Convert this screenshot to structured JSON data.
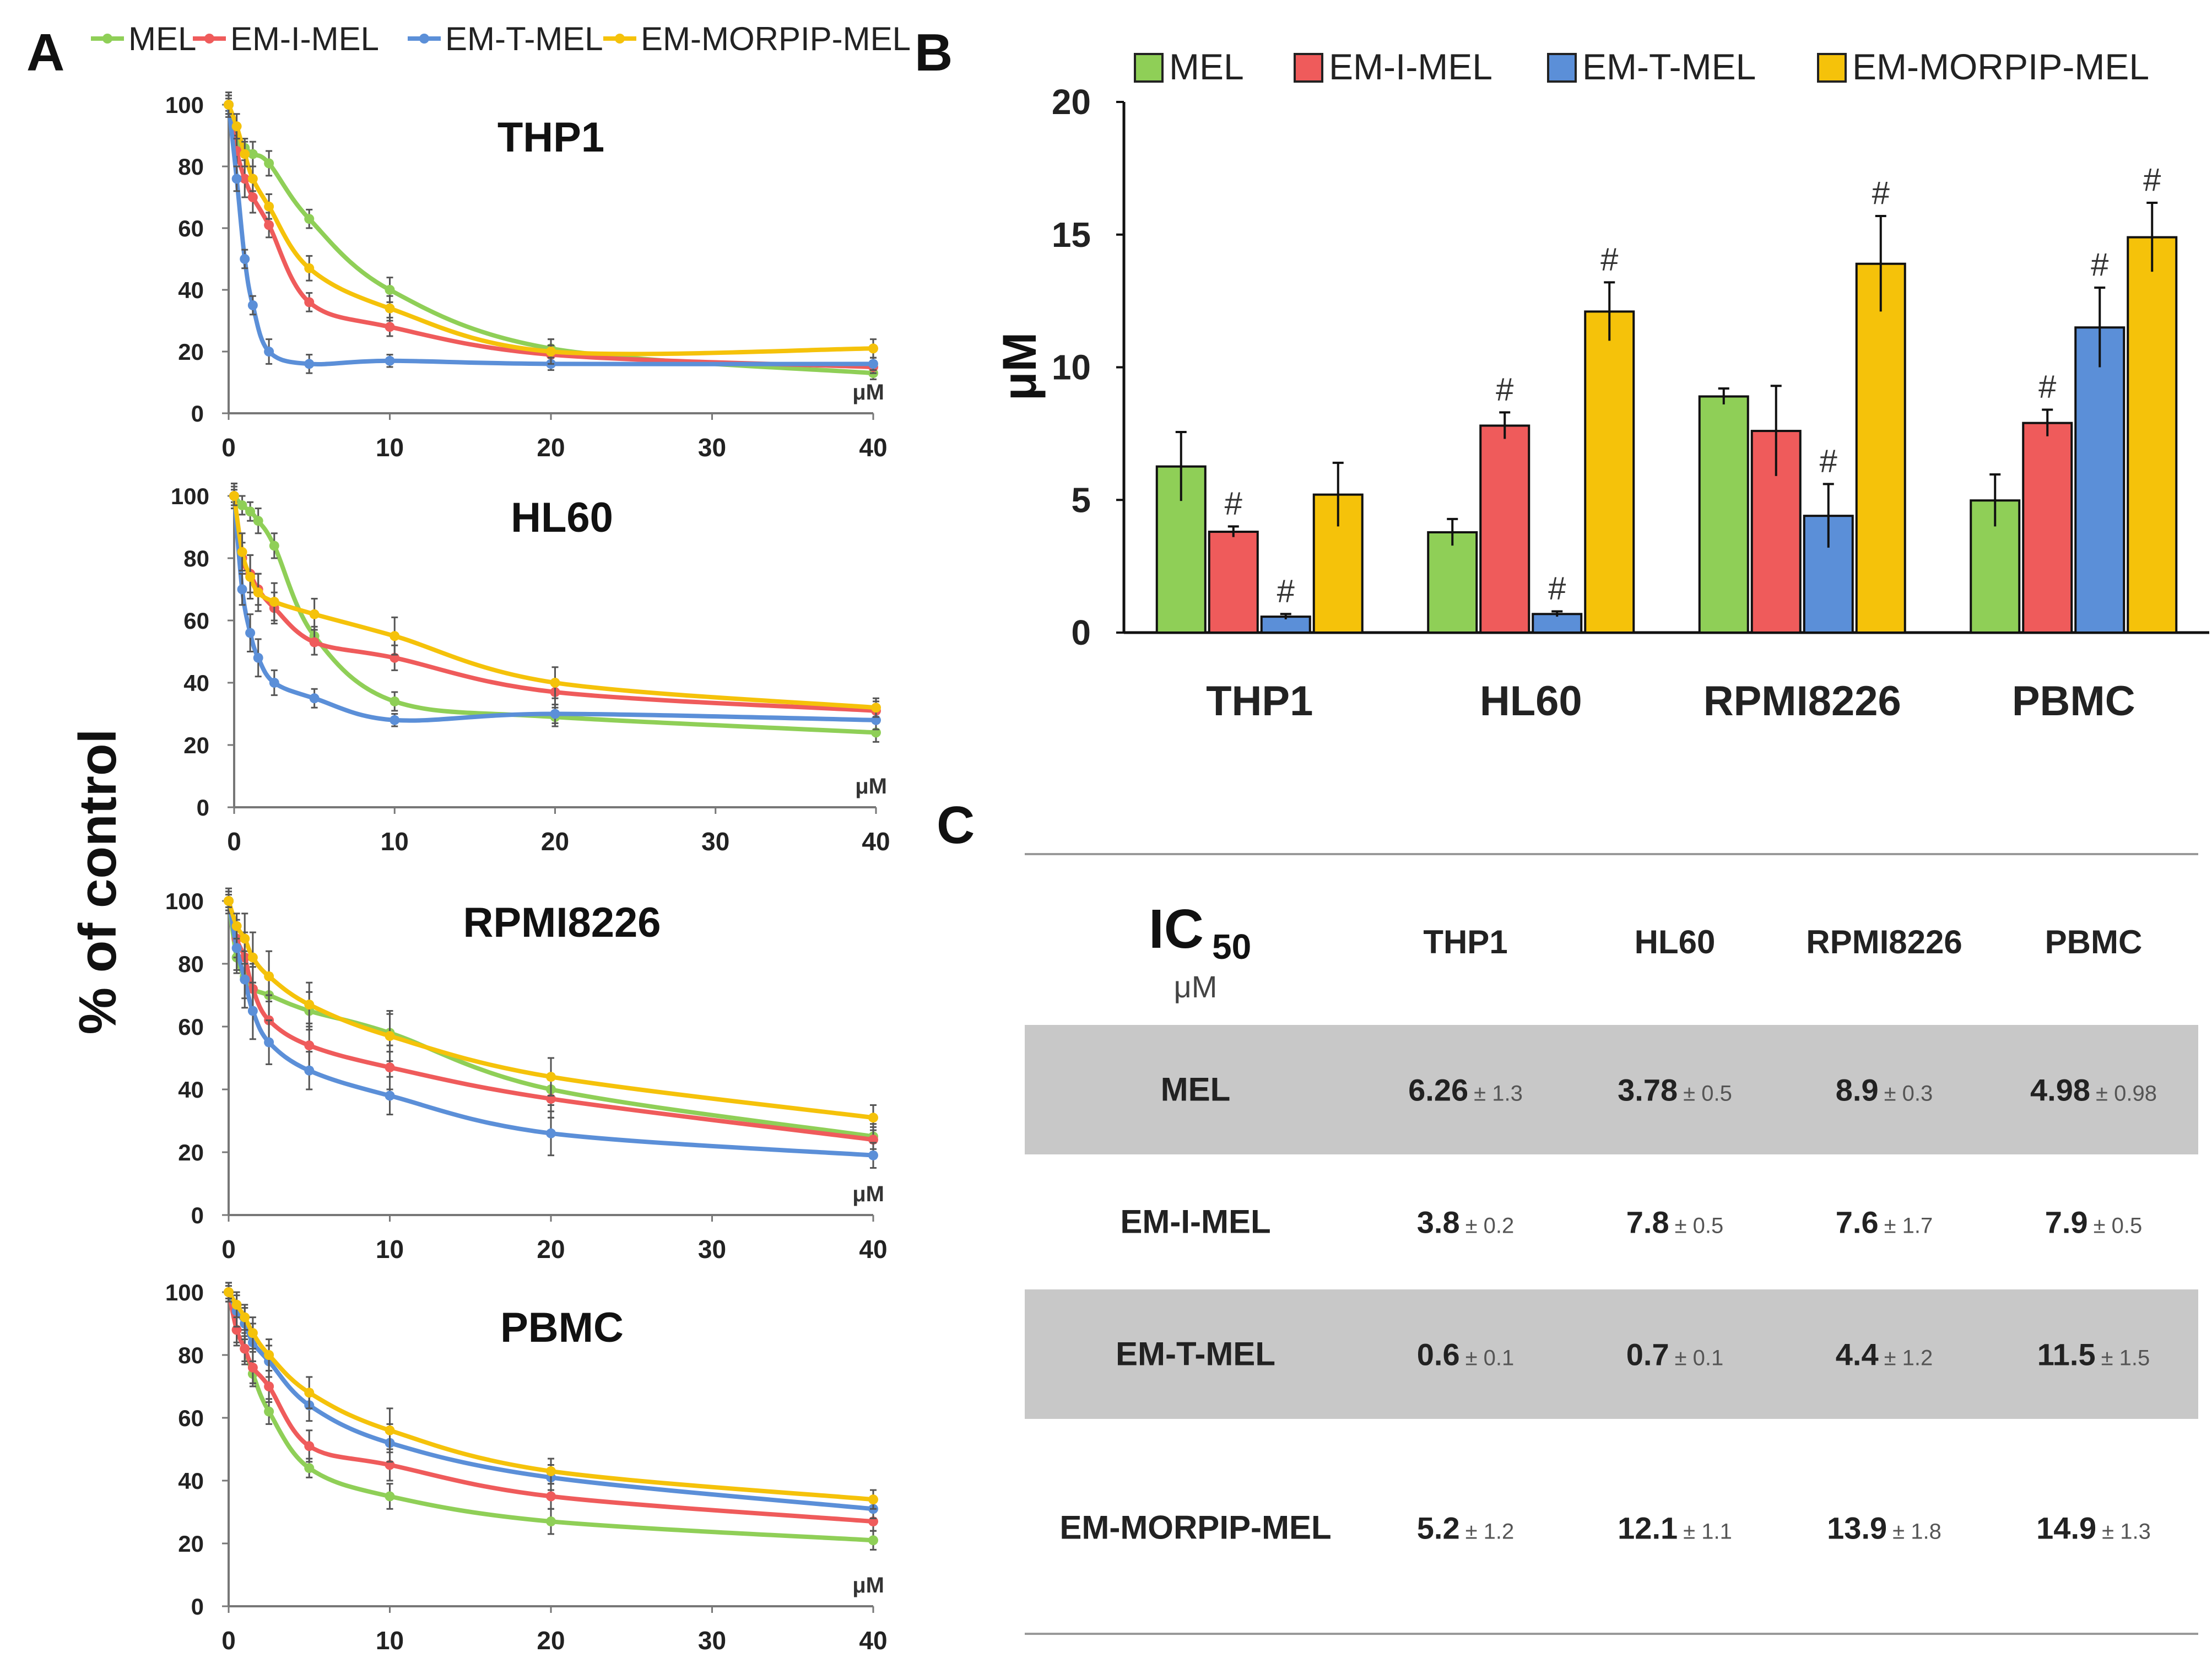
{
  "colors": {
    "MEL": "#8fcf57",
    "EM-I-MEL": "#ef5b5b",
    "EM-T-MEL": "#5b8fd8",
    "EM-MORPIP-MEL": "#f5c20a"
  },
  "panel_labels": {
    "a": "A",
    "b": "B",
    "c": "C"
  },
  "legend": {
    "items": [
      "MEL",
      "EM-I-MEL",
      "EM-T-MEL",
      "EM-MORPIP-MEL"
    ]
  },
  "panelA": {
    "ylabel": "% of control",
    "unit": "μM"
  },
  "panelB": {
    "ylabel": "μM",
    "marker": "#"
  },
  "table": {
    "title_main": "IC",
    "title_sub": "50",
    "title_unit": "μM",
    "columns": [
      "THP1",
      "HL60",
      "RPMI8226",
      "PBMC"
    ],
    "rows": [
      {
        "label": "MEL",
        "values": [
          "6.26",
          "3.78",
          "8.9",
          "4.98"
        ],
        "errors": [
          "± 1.3",
          "± 0.5",
          "± 0.3",
          "± 0.98"
        ]
      },
      {
        "label": "EM-I-MEL",
        "values": [
          "3.8",
          "7.8",
          "7.6",
          "7.9"
        ],
        "errors": [
          "± 0.2",
          "± 0.5",
          "± 1.7",
          "± 0.5"
        ]
      },
      {
        "label": "EM-T-MEL",
        "values": [
          "0.6",
          "0.7",
          "4.4",
          "11.5"
        ],
        "errors": [
          "± 0.1",
          "± 0.1",
          "± 1.2",
          "± 1.5"
        ]
      },
      {
        "label": "EM-MORPIP-MEL",
        "values": [
          "5.2",
          "12.1",
          "13.9",
          "14.9"
        ],
        "errors": [
          "± 1.2",
          "± 1.1",
          "± 1.8",
          "± 1.3"
        ]
      }
    ]
  },
  "chart_data": [
    {
      "type": "line",
      "title": "THP1",
      "xlabel": "μM",
      "ylabel": "% of control",
      "x": [
        0,
        0.5,
        1,
        1.5,
        2.5,
        5,
        10,
        20,
        40
      ],
      "xlim": [
        0,
        40
      ],
      "ylim": [
        0,
        100
      ],
      "xticks": [
        0,
        10,
        20,
        30,
        40
      ],
      "yticks": [
        0,
        20,
        40,
        60,
        80,
        100
      ],
      "series": [
        {
          "name": "MEL",
          "values": [
            100,
            88,
            86,
            84,
            81,
            63,
            40,
            21,
            13
          ],
          "errors": [
            2,
            3,
            3,
            4,
            4,
            3,
            4,
            3,
            2
          ]
        },
        {
          "name": "EM-I-MEL",
          "values": [
            100,
            85,
            76,
            70,
            61,
            36,
            28,
            19,
            15
          ],
          "errors": [
            3,
            5,
            6,
            5,
            4,
            3,
            3,
            3,
            2
          ]
        },
        {
          "name": "EM-T-MEL",
          "values": [
            100,
            76,
            50,
            35,
            20,
            16,
            17,
            16,
            16
          ],
          "errors": [
            4,
            4,
            3,
            3,
            4,
            3,
            2,
            2,
            2
          ]
        },
        {
          "name": "EM-MORPIP-MEL",
          "values": [
            100,
            93,
            84,
            76,
            67,
            47,
            34,
            20,
            21
          ],
          "errors": [
            3,
            4,
            4,
            4,
            4,
            4,
            4,
            4,
            3
          ]
        }
      ]
    },
    {
      "type": "line",
      "title": "HL60",
      "xlabel": "μM",
      "ylabel": "% of control",
      "x": [
        0,
        0.5,
        1,
        1.5,
        2.5,
        5,
        10,
        20,
        40
      ],
      "xlim": [
        0,
        40
      ],
      "ylim": [
        0,
        100
      ],
      "xticks": [
        0,
        10,
        20,
        30,
        40
      ],
      "yticks": [
        0,
        20,
        40,
        60,
        80,
        100
      ],
      "series": [
        {
          "name": "MEL",
          "values": [
            100,
            97,
            95,
            92,
            84,
            55,
            34,
            29,
            24
          ],
          "errors": [
            2,
            3,
            3,
            4,
            4,
            3,
            3,
            3,
            3
          ]
        },
        {
          "name": "EM-I-MEL",
          "values": [
            100,
            80,
            75,
            70,
            64,
            53,
            48,
            37,
            31
          ],
          "errors": [
            4,
            5,
            6,
            5,
            5,
            4,
            4,
            4,
            3
          ]
        },
        {
          "name": "EM-T-MEL",
          "values": [
            100,
            70,
            56,
            48,
            40,
            35,
            28,
            30,
            28
          ],
          "errors": [
            4,
            5,
            6,
            6,
            4,
            3,
            2,
            3,
            3
          ]
        },
        {
          "name": "EM-MORPIP-MEL",
          "values": [
            100,
            82,
            74,
            69,
            66,
            62,
            55,
            40,
            32
          ],
          "errors": [
            3,
            6,
            7,
            6,
            6,
            5,
            6,
            5,
            3
          ]
        }
      ]
    },
    {
      "type": "line",
      "title": "RPMI8226",
      "xlabel": "μM",
      "ylabel": "% of control",
      "x": [
        0,
        0.5,
        1,
        1.5,
        2.5,
        5,
        10,
        20,
        40
      ],
      "xlim": [
        0,
        40
      ],
      "ylim": [
        0,
        100
      ],
      "xticks": [
        0,
        10,
        20,
        30,
        40
      ],
      "yticks": [
        0,
        20,
        40,
        60,
        80,
        100
      ],
      "series": [
        {
          "name": "MEL",
          "values": [
            100,
            82,
            76,
            72,
            70,
            65,
            58,
            40,
            25
          ],
          "errors": [
            3,
            5,
            7,
            7,
            7,
            6,
            6,
            5,
            4
          ]
        },
        {
          "name": "EM-I-MEL",
          "values": [
            100,
            88,
            82,
            72,
            62,
            54,
            47,
            37,
            24
          ],
          "errors": [
            3,
            6,
            8,
            8,
            8,
            7,
            7,
            6,
            4
          ]
        },
        {
          "name": "EM-T-MEL",
          "values": [
            100,
            85,
            75,
            65,
            55,
            46,
            38,
            26,
            19
          ],
          "errors": [
            4,
            7,
            9,
            9,
            7,
            6,
            6,
            7,
            4
          ]
        },
        {
          "name": "EM-MORPIP-MEL",
          "values": [
            100,
            92,
            88,
            82,
            76,
            67,
            57,
            44,
            31
          ],
          "errors": [
            2,
            4,
            8,
            8,
            8,
            7,
            8,
            6,
            4
          ]
        }
      ]
    },
    {
      "type": "line",
      "title": "PBMC",
      "xlabel": "μM",
      "ylabel": "% of control",
      "x": [
        0,
        0.5,
        1,
        1.5,
        2.5,
        5,
        10,
        20,
        40
      ],
      "xlim": [
        0,
        40
      ],
      "ylim": [
        0,
        100
      ],
      "xticks": [
        0,
        10,
        20,
        30,
        40
      ],
      "yticks": [
        0,
        20,
        40,
        60,
        80,
        100
      ],
      "series": [
        {
          "name": "MEL",
          "values": [
            100,
            88,
            82,
            74,
            62,
            44,
            35,
            27,
            21
          ],
          "errors": [
            3,
            4,
            4,
            4,
            4,
            3,
            4,
            4,
            3
          ]
        },
        {
          "name": "EM-I-MEL",
          "values": [
            100,
            88,
            82,
            76,
            70,
            51,
            45,
            35,
            27
          ],
          "errors": [
            3,
            5,
            5,
            5,
            5,
            5,
            5,
            4,
            3
          ]
        },
        {
          "name": "EM-T-MEL",
          "values": [
            100,
            94,
            90,
            84,
            78,
            64,
            52,
            41,
            31
          ],
          "errors": [
            3,
            5,
            5,
            6,
            5,
            5,
            6,
            4,
            3
          ]
        },
        {
          "name": "EM-MORPIP-MEL",
          "values": [
            100,
            96,
            92,
            87,
            80,
            68,
            56,
            43,
            34
          ],
          "errors": [
            2,
            4,
            4,
            5,
            5,
            5,
            7,
            4,
            3
          ]
        }
      ]
    },
    {
      "type": "bar",
      "title": "",
      "ylabel": "μM",
      "xlabel": "",
      "categories": [
        "THP1",
        "HL60",
        "RPMI8226",
        "PBMC"
      ],
      "ylim": [
        0,
        20
      ],
      "yticks": [
        0,
        5,
        10,
        15,
        20
      ],
      "series": [
        {
          "name": "MEL",
          "values": [
            6.26,
            3.78,
            8.9,
            4.98
          ],
          "errors": [
            1.3,
            0.5,
            0.3,
            0.98
          ]
        },
        {
          "name": "EM-I-MEL",
          "values": [
            3.8,
            7.8,
            7.6,
            7.9
          ],
          "errors": [
            0.2,
            0.5,
            1.7,
            0.5
          ]
        },
        {
          "name": "EM-T-MEL",
          "values": [
            0.6,
            0.7,
            4.4,
            11.5
          ],
          "errors": [
            0.1,
            0.1,
            1.2,
            1.5
          ]
        },
        {
          "name": "EM-MORPIP-MEL",
          "values": [
            5.2,
            12.1,
            13.9,
            14.9
          ],
          "errors": [
            1.2,
            1.1,
            1.8,
            1.3
          ]
        }
      ],
      "significance_marks": [
        {
          "category": "THP1",
          "series": "EM-I-MEL",
          "label": "#"
        },
        {
          "category": "THP1",
          "series": "EM-T-MEL",
          "label": "#"
        },
        {
          "category": "HL60",
          "series": "EM-I-MEL",
          "label": "#"
        },
        {
          "category": "HL60",
          "series": "EM-T-MEL",
          "label": "#"
        },
        {
          "category": "HL60",
          "series": "EM-MORPIP-MEL",
          "label": "#"
        },
        {
          "category": "RPMI8226",
          "series": "EM-T-MEL",
          "label": "#"
        },
        {
          "category": "RPMI8226",
          "series": "EM-MORPIP-MEL",
          "label": "#"
        },
        {
          "category": "PBMC",
          "series": "EM-I-MEL",
          "label": "#"
        },
        {
          "category": "PBMC",
          "series": "EM-T-MEL",
          "label": "#"
        },
        {
          "category": "PBMC",
          "series": "EM-MORPIP-MEL",
          "label": "#"
        }
      ]
    }
  ]
}
